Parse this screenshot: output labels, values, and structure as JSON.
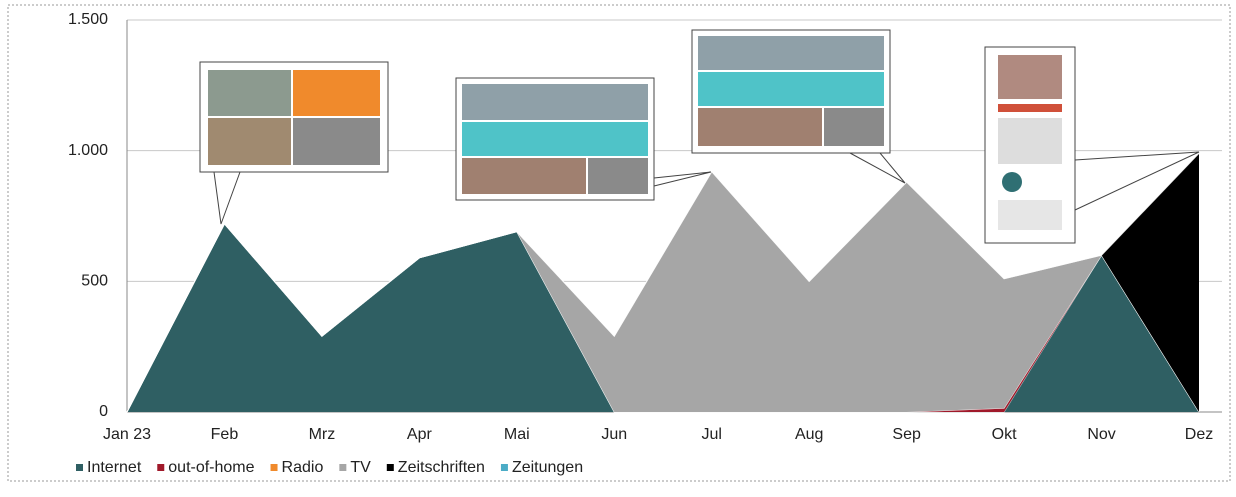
{
  "chart_data": {
    "type": "stacked-area",
    "categories": [
      "Jan 23",
      "Feb",
      "Mrz",
      "Apr",
      "Mai",
      "Jun",
      "Jul",
      "Aug",
      "Sep",
      "Okt",
      "Nov",
      "Dez"
    ],
    "series": [
      {
        "name": "Internet",
        "color": "#2f5f63",
        "values": [
          0,
          720,
          290,
          590,
          690,
          0,
          0,
          0,
          0,
          0,
          600,
          0
        ]
      },
      {
        "name": "out-of-home",
        "color": "#a0192a",
        "values": [
          0,
          0,
          0,
          0,
          0,
          0,
          0,
          0,
          0,
          15,
          0,
          0
        ]
      },
      {
        "name": "Radio",
        "color": "#f08a2c",
        "values": [
          0,
          0,
          0,
          0,
          0,
          0,
          0,
          0,
          0,
          0,
          0,
          0
        ]
      },
      {
        "name": "TV",
        "color": "#a6a6a6",
        "values": [
          0,
          0,
          0,
          0,
          0,
          290,
          920,
          500,
          880,
          495,
          0,
          0
        ]
      },
      {
        "name": "Zeitschriften",
        "color": "#000000",
        "values": [
          0,
          0,
          0,
          0,
          0,
          0,
          0,
          0,
          0,
          0,
          0,
          990
        ]
      },
      {
        "name": "Zeitungen",
        "color": "#4bacc6",
        "values": [
          0,
          0,
          0,
          0,
          0,
          0,
          0,
          0,
          0,
          0,
          0,
          0
        ]
      }
    ],
    "ylim": [
      0,
      1500
    ],
    "yticks": [
      0,
      500,
      {
        "value": 1000,
        "label": "1.000"
      },
      {
        "value": 1500,
        "label": "1.500"
      }
    ],
    "grid": true,
    "legend": "bottom"
  }
}
